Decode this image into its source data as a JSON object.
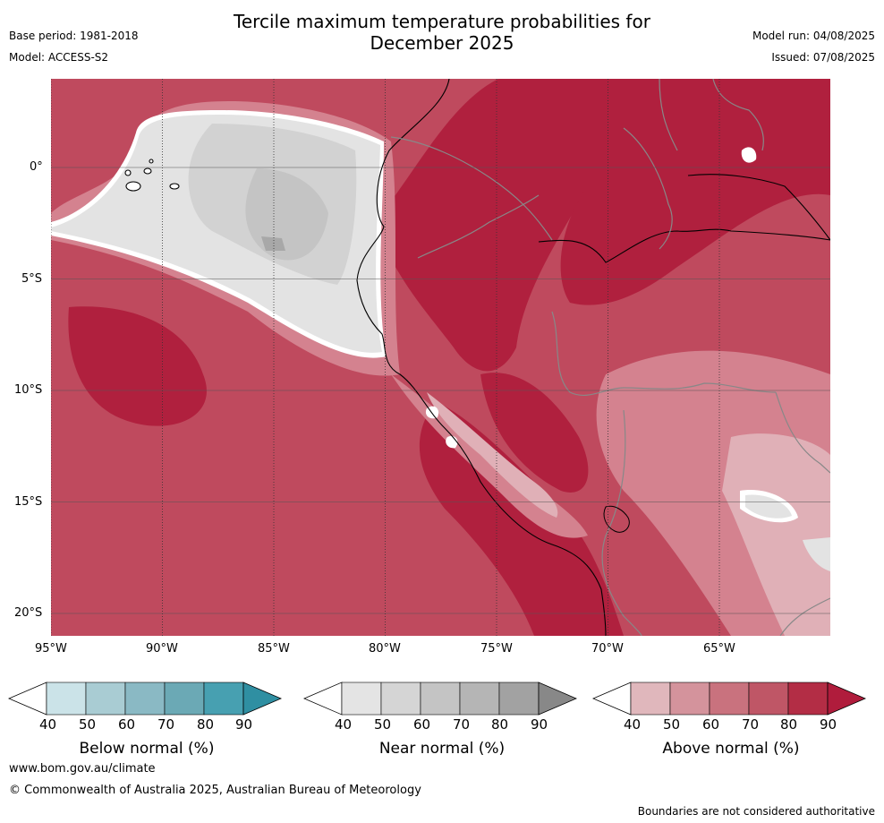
{
  "title": "Tercile maximum temperature probabilities for\nDecember 2025",
  "title_line1": "Tercile maximum temperature probabilities for",
  "title_line2": "December 2025",
  "meta_left": {
    "base_period": "Base period: 1981-2018",
    "model": "Model: ACCESS-S2"
  },
  "meta_right": {
    "model_run": "Model run: 04/08/2025",
    "issued": "Issued: 07/08/2025"
  },
  "map": {
    "lon_labels": [
      "95°W",
      "90°W",
      "85°W",
      "80°W",
      "75°W",
      "70°W",
      "65°W"
    ],
    "lat_labels": [
      "0°",
      "5°S",
      "10°S",
      "15°S",
      "20°S"
    ]
  },
  "colorbars": [
    {
      "label": "Below normal (%)",
      "ticks": [
        "40",
        "50",
        "60",
        "70",
        "80",
        "90"
      ],
      "colors": [
        "#ffffff",
        "#cbe3e8",
        "#a9ccd3",
        "#8ab9c4",
        "#6ba9b5",
        "#47a0b1",
        "#2f8fa2"
      ]
    },
    {
      "label": "Near normal (%)",
      "ticks": [
        "40",
        "50",
        "60",
        "70",
        "80",
        "90"
      ],
      "colors": [
        "#ffffff",
        "#e4e4e4",
        "#d5d5d5",
        "#c4c4c4",
        "#b5b5b5",
        "#a2a2a2",
        "#888888"
      ]
    },
    {
      "label": "Above normal (%)",
      "ticks": [
        "40",
        "50",
        "60",
        "70",
        "80",
        "90"
      ],
      "colors": [
        "#ffffff",
        "#e0b7bc",
        "#d4939c",
        "#c9727e",
        "#bf5666",
        "#b32d45",
        "#b01c3c"
      ]
    }
  ],
  "footer": {
    "url": "www.bom.gov.au/climate",
    "copyright": "© Commonwealth of Australia 2025, Australian Bureau of Meteorology",
    "disclaimer": "Boundaries are not considered authoritative"
  }
}
